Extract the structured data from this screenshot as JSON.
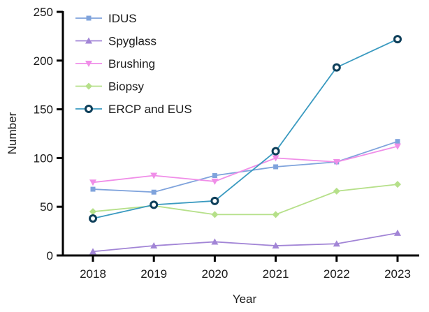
{
  "chart_data": {
    "type": "line",
    "title": "",
    "xlabel": "Year",
    "ylabel": "Number",
    "x": [
      "2018",
      "2019",
      "2020",
      "2021",
      "2022",
      "2023"
    ],
    "ylim": [
      0,
      250
    ],
    "yticks": [
      0,
      50,
      100,
      150,
      200,
      250
    ],
    "grid": false,
    "legend_position": "top-left",
    "series": [
      {
        "name": "IDUS",
        "marker": "square",
        "color": "#7fa3dc",
        "marker_color": "#7fa3dc",
        "values": [
          68,
          65,
          82,
          91,
          96,
          117
        ]
      },
      {
        "name": "Spyglass",
        "marker": "triangle-up",
        "color": "#a285d6",
        "marker_color": "#a285d6",
        "values": [
          4,
          10,
          14,
          10,
          12,
          23
        ]
      },
      {
        "name": "Brushing",
        "marker": "triangle-down",
        "color": "#f08ee8",
        "marker_color": "#f08ee8",
        "values": [
          75,
          82,
          76,
          100,
          96,
          112
        ]
      },
      {
        "name": "Biopsy",
        "marker": "diamond",
        "color": "#b6e08a",
        "marker_color": "#b6e08a",
        "values": [
          45,
          51,
          42,
          42,
          66,
          73
        ]
      },
      {
        "name": "ERCP and EUS",
        "marker": "circle",
        "color": "#3a9ac0",
        "marker_color": "#0e3f5a",
        "values": [
          38,
          52,
          56,
          107,
          193,
          222
        ]
      }
    ]
  }
}
